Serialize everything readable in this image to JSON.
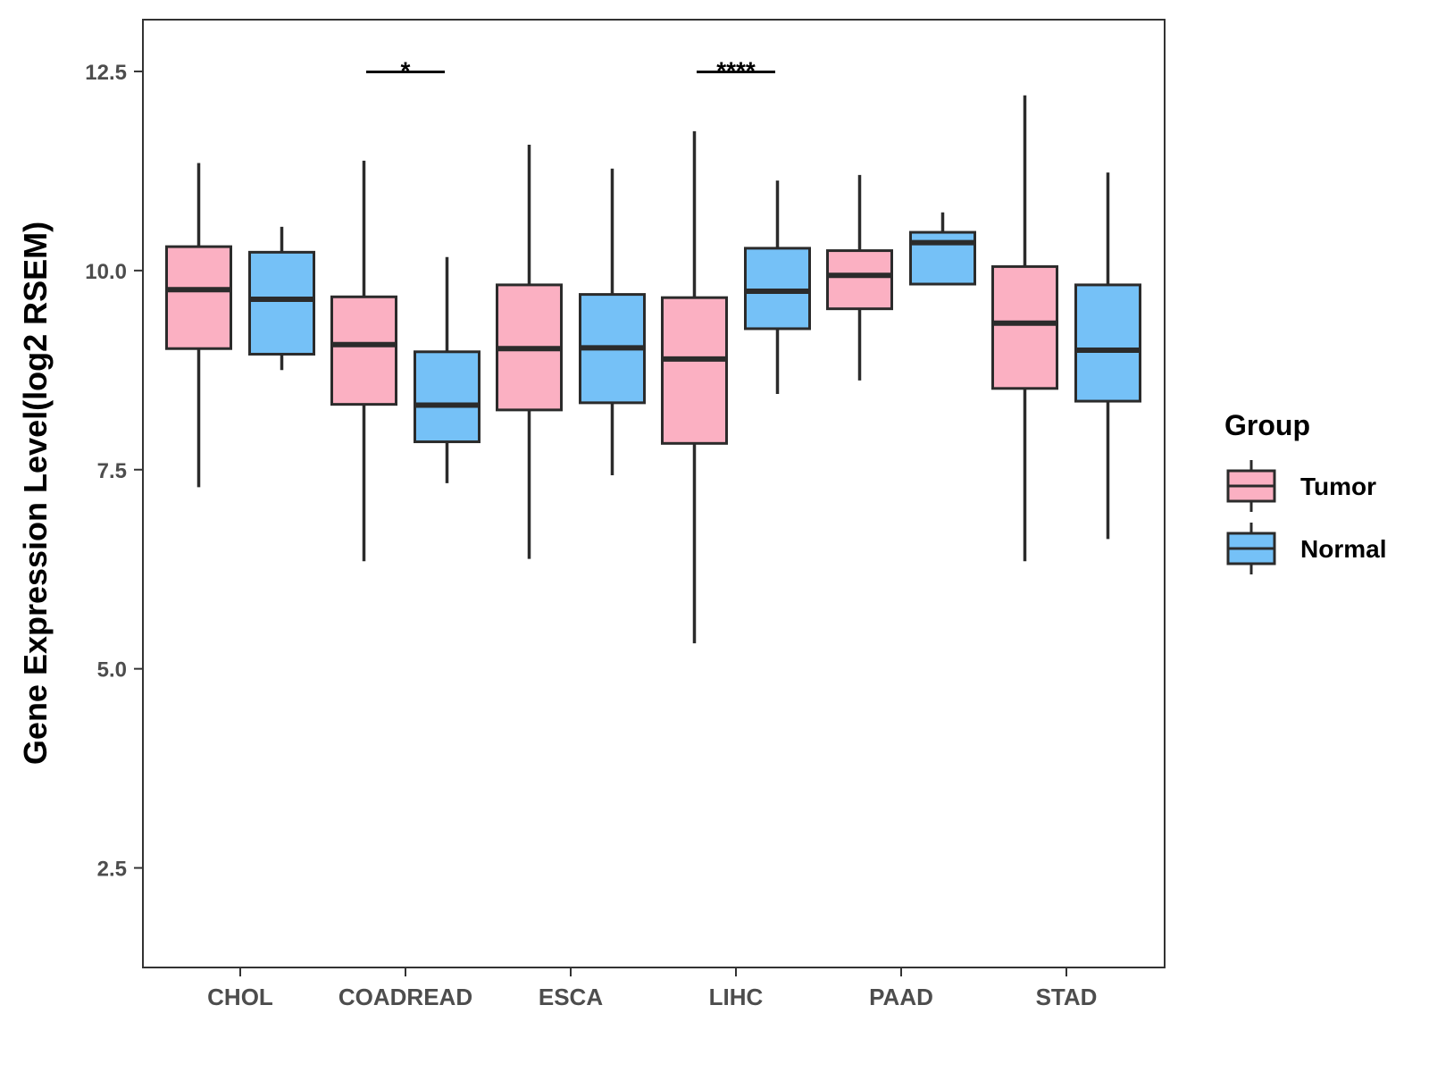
{
  "chart_data": {
    "type": "box",
    "ylabel": "Gene Expression Level(log2 RSEM)",
    "xlabel": "",
    "ylim": [
      1.25,
      13.15
    ],
    "yticks": [
      2.5,
      5.0,
      7.5,
      10.0,
      12.5
    ],
    "ytick_labels": [
      "2.5",
      "5.0",
      "7.5",
      "10.0",
      "12.5"
    ],
    "categories": [
      "CHOL",
      "COADREAD",
      "ESCA",
      "LIHC",
      "PAAD",
      "STAD"
    ],
    "legend": {
      "title": "Group",
      "position": "right",
      "entries": [
        {
          "name": "Tumor",
          "color": "#fbb0c2"
        },
        {
          "name": "Normal",
          "color": "#75c1f7"
        }
      ]
    },
    "series": [
      {
        "name": "Tumor",
        "color": "#fbb0c2",
        "boxes": [
          {
            "min": 7.28,
            "q1": 9.02,
            "median": 9.76,
            "q3": 10.3,
            "max": 11.35
          },
          {
            "min": 6.35,
            "q1": 8.32,
            "median": 9.07,
            "q3": 9.67,
            "max": 11.38
          },
          {
            "min": 6.38,
            "q1": 8.25,
            "median": 9.02,
            "q3": 9.82,
            "max": 11.58
          },
          {
            "min": 5.32,
            "q1": 7.83,
            "median": 8.89,
            "q3": 9.66,
            "max": 11.75
          },
          {
            "min": 8.62,
            "q1": 9.52,
            "median": 9.94,
            "q3": 10.25,
            "max": 11.2
          },
          {
            "min": 6.35,
            "q1": 8.52,
            "median": 9.34,
            "q3": 10.05,
            "max": 12.2
          }
        ]
      },
      {
        "name": "Normal",
        "color": "#75c1f7",
        "boxes": [
          {
            "min": 8.75,
            "q1": 8.95,
            "median": 9.64,
            "q3": 10.23,
            "max": 10.55
          },
          {
            "min": 7.33,
            "q1": 7.85,
            "median": 8.31,
            "q3": 8.98,
            "max": 10.17
          },
          {
            "min": 7.43,
            "q1": 8.34,
            "median": 9.03,
            "q3": 9.7,
            "max": 11.28
          },
          {
            "min": 8.45,
            "q1": 9.27,
            "median": 9.74,
            "q3": 10.28,
            "max": 11.13
          },
          {
            "min": 9.83,
            "q1": 9.83,
            "median": 10.35,
            "q3": 10.48,
            "max": 10.73
          },
          {
            "min": 6.63,
            "q1": 8.36,
            "median": 9.0,
            "q3": 9.82,
            "max": 11.23
          }
        ]
      }
    ],
    "annotations": [
      {
        "category": "COADREAD",
        "label": "*",
        "y": 12.55
      },
      {
        "category": "LIHC",
        "label": "****",
        "y": 12.55
      }
    ]
  }
}
